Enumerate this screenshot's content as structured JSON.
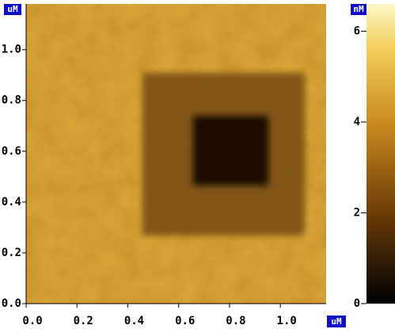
{
  "chart_data": {
    "type": "image",
    "y_unit": "uM",
    "x_unit": "uM",
    "xlim": [
      0,
      1.18
    ],
    "ylim": [
      0,
      1.18
    ],
    "xticks": [
      {
        "value": 0,
        "label": "0.0"
      },
      {
        "value": 0.2,
        "label": "0.2"
      },
      {
        "value": 0.4,
        "label": "0.4"
      },
      {
        "value": 0.6,
        "label": "0.6"
      },
      {
        "value": 0.8,
        "label": "0.8"
      },
      {
        "value": 1,
        "label": "1.0"
      }
    ],
    "yticks": [
      {
        "value": 0,
        "label": "0.0"
      },
      {
        "value": 0.2,
        "label": "0.2"
      },
      {
        "value": 0.4,
        "label": "0.4"
      },
      {
        "value": 0.6,
        "label": "0.6"
      },
      {
        "value": 0.8,
        "label": "0.8"
      },
      {
        "value": 1,
        "label": "1.0"
      }
    ],
    "colorbar": {
      "unit": "nM",
      "lim": [
        0,
        6.6
      ],
      "ticks": [
        0,
        2,
        4,
        6
      ]
    }
  }
}
